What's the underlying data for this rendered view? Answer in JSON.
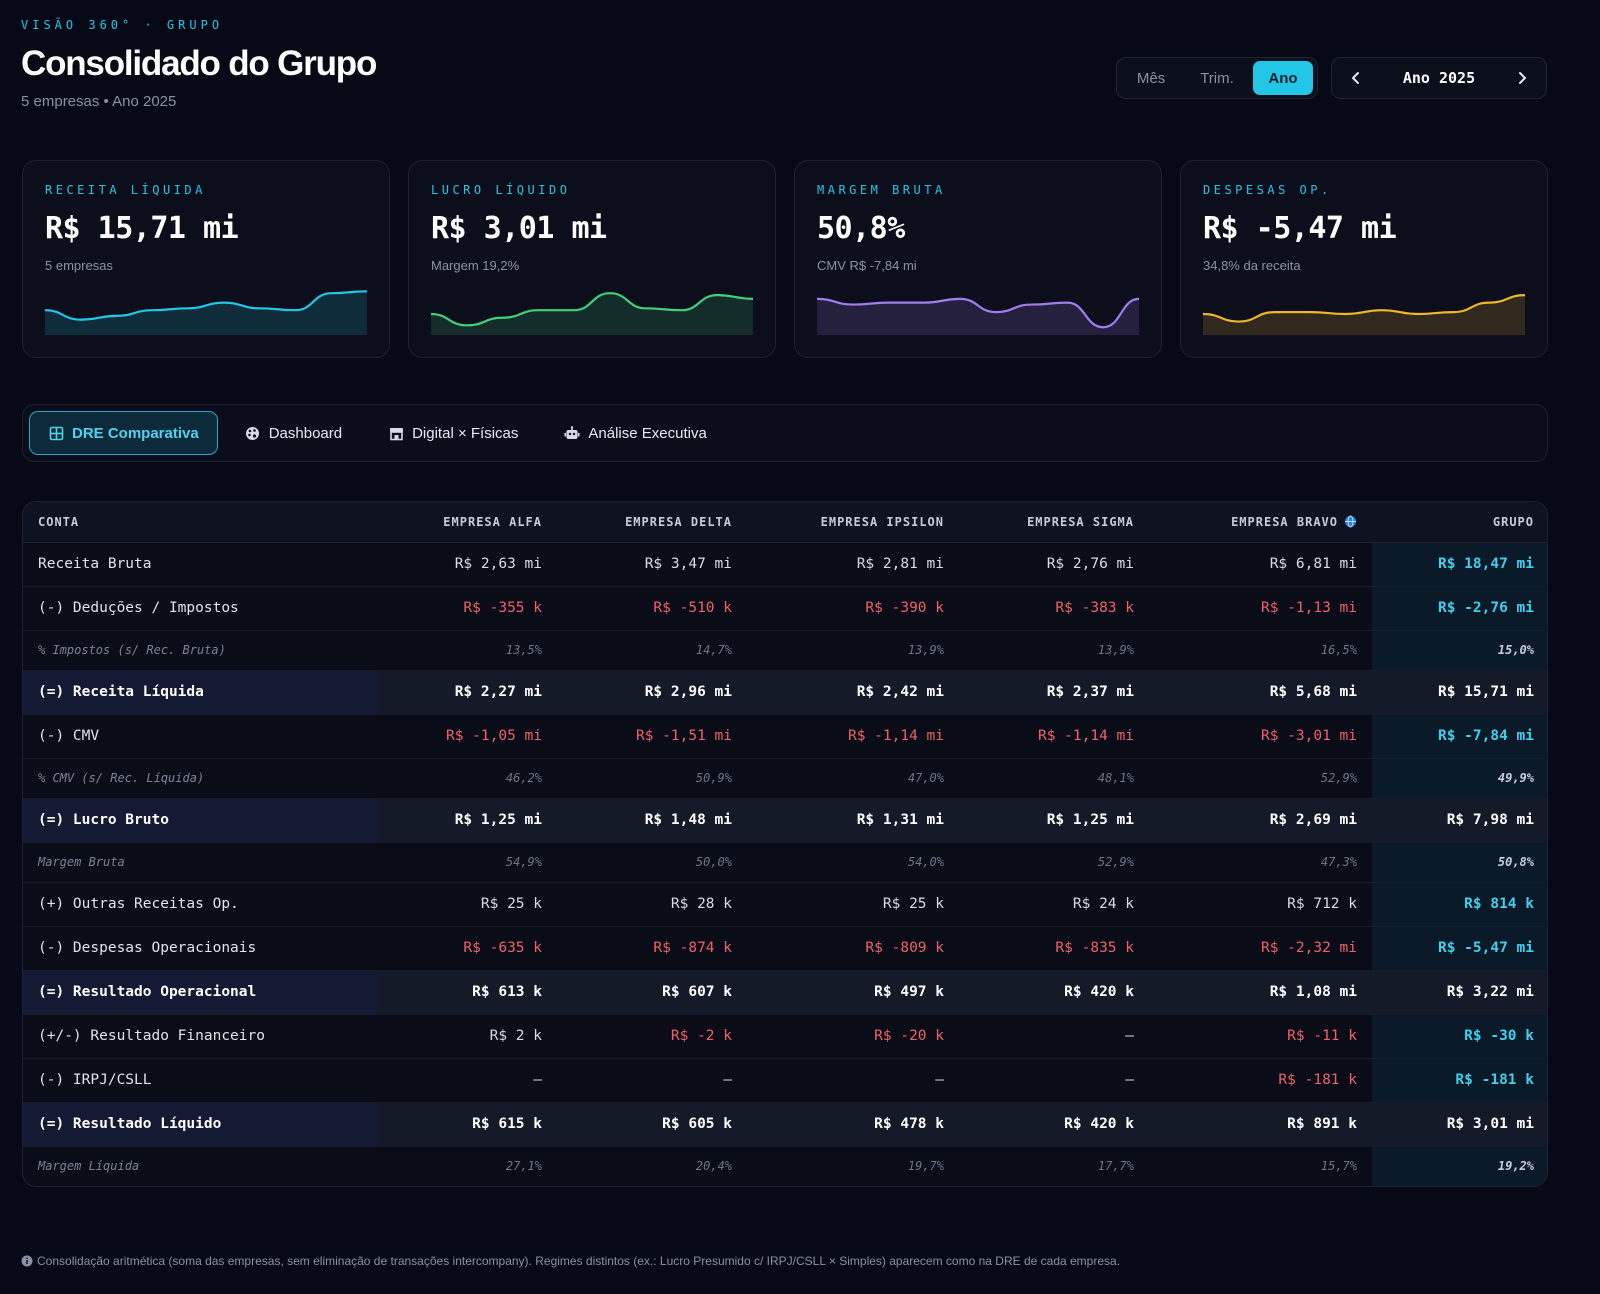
{
  "header": {
    "eyebrow": "VISÃO 360° · GRUPO",
    "title": "Consolidado do Grupo",
    "subtitle": "5 empresas • Ano 2025"
  },
  "period_toggle": {
    "options": [
      "Mês",
      "Trim.",
      "Ano"
    ],
    "selected": "Ano"
  },
  "year_nav": {
    "label": "Ano 2025"
  },
  "kpis": [
    {
      "label": "RECEITA LÍQUIDA",
      "value": "R$ 15,71 mi",
      "sub": "5 empresas",
      "color": "#22c6e6",
      "trend": [
        0.55,
        0.3,
        0.4,
        0.55,
        0.6,
        0.75,
        0.6,
        0.55,
        1.0,
        1.05
      ]
    },
    {
      "label": "LUCRO LÍQUIDO",
      "value": "R$ 3,01 mi",
      "sub": "Margem 19,2%",
      "color": "#3fd07a",
      "trend": [
        0.45,
        0.15,
        0.35,
        0.55,
        0.55,
        1.0,
        0.6,
        0.55,
        0.95,
        0.85
      ]
    },
    {
      "label": "MARGEM BRUTA",
      "value": "50,8%",
      "sub": "CMV R$ -7,84 mi",
      "color": "#a07cf0",
      "trend": [
        0.85,
        0.7,
        0.75,
        0.75,
        0.85,
        0.5,
        0.7,
        0.75,
        0.1,
        0.85
      ]
    },
    {
      "label": "DESPESAS OP.",
      "value": "R$ -5,47 mi",
      "sub": "34,8% da receita",
      "color": "#f0b429",
      "trend": [
        0.45,
        0.25,
        0.5,
        0.5,
        0.45,
        0.55,
        0.45,
        0.5,
        0.75,
        0.95
      ]
    }
  ],
  "tabs": [
    {
      "label": "DRE Comparativa",
      "icon": "table-icon",
      "active": true
    },
    {
      "label": "Dashboard",
      "icon": "palette-icon",
      "active": false
    },
    {
      "label": "Digital × Físicas",
      "icon": "store-icon",
      "active": false
    },
    {
      "label": "Análise Executiva",
      "icon": "robot-icon",
      "active": false
    }
  ],
  "table": {
    "headers": [
      "CONTA",
      "EMPRESA ALFA",
      "EMPRESA DELTA",
      "EMPRESA IPSILON",
      "EMPRESA SIGMA",
      "EMPRESA BRAVO",
      "GRUPO"
    ],
    "bravo_icon": "globe-icon",
    "rows": [
      {
        "type": "normal",
        "cells": [
          "Receita Bruta",
          "R$ 2,63 mi",
          "R$ 3,47 mi",
          "R$ 2,81 mi",
          "R$ 2,76 mi",
          "R$ 6,81 mi",
          "R$ 18,47 mi"
        ]
      },
      {
        "type": "normal",
        "neg": true,
        "cells": [
          "(-) Deduções / Impostos",
          "R$ -355 k",
          "R$ -510 k",
          "R$ -390 k",
          "R$ -383 k",
          "R$ -1,13 mi",
          "R$ -2,76 mi"
        ]
      },
      {
        "type": "pct",
        "cells": [
          "% Impostos (s/ Rec. Bruta)",
          "13,5%",
          "14,7%",
          "13,9%",
          "13,9%",
          "16,5%",
          "15,0%"
        ]
      },
      {
        "type": "total",
        "cells": [
          "(=) Receita Líquida",
          "R$ 2,27 mi",
          "R$ 2,96 mi",
          "R$ 2,42 mi",
          "R$ 2,37 mi",
          "R$ 5,68 mi",
          "R$ 15,71 mi"
        ]
      },
      {
        "type": "normal",
        "neg": true,
        "cells": [
          "(-) CMV",
          "R$ -1,05 mi",
          "R$ -1,51 mi",
          "R$ -1,14 mi",
          "R$ -1,14 mi",
          "R$ -3,01 mi",
          "R$ -7,84 mi"
        ]
      },
      {
        "type": "pct",
        "cells": [
          "% CMV (s/ Rec. Líquida)",
          "46,2%",
          "50,9%",
          "47,0%",
          "48,1%",
          "52,9%",
          "49,9%"
        ]
      },
      {
        "type": "total",
        "cells": [
          "(=) Lucro Bruto",
          "R$ 1,25 mi",
          "R$ 1,48 mi",
          "R$ 1,31 mi",
          "R$ 1,25 mi",
          "R$ 2,69 mi",
          "R$ 7,98 mi"
        ]
      },
      {
        "type": "pct",
        "cells": [
          "Margem Bruta",
          "54,9%",
          "50,0%",
          "54,0%",
          "52,9%",
          "47,3%",
          "50,8%"
        ]
      },
      {
        "type": "normal",
        "cells": [
          "(+) Outras Receitas Op.",
          "R$ 25 k",
          "R$ 28 k",
          "R$ 25 k",
          "R$ 24 k",
          "R$ 712 k",
          "R$ 814 k"
        ]
      },
      {
        "type": "normal",
        "neg": true,
        "cells": [
          "(-) Despesas Operacionais",
          "R$ -635 k",
          "R$ -874 k",
          "R$ -809 k",
          "R$ -835 k",
          "R$ -2,32 mi",
          "R$ -5,47 mi"
        ]
      },
      {
        "type": "total",
        "cells": [
          "(=) Resultado Operacional",
          "R$ 613 k",
          "R$ 607 k",
          "R$ 497 k",
          "R$ 420 k",
          "R$ 1,08 mi",
          "R$ 3,22 mi"
        ]
      },
      {
        "type": "normal",
        "negcols": [
          2,
          3,
          5
        ],
        "cells": [
          "(+/-) Resultado Financeiro",
          "R$ 2 k",
          "R$ -2 k",
          "R$ -20 k",
          "—",
          "R$ -11 k",
          "R$ -30 k"
        ]
      },
      {
        "type": "normal",
        "negcols": [
          5
        ],
        "cells": [
          "(-) IRPJ/CSLL",
          "—",
          "—",
          "—",
          "—",
          "R$ -181 k",
          "R$ -181 k"
        ]
      },
      {
        "type": "total",
        "cells": [
          "(=) Resultado Líquido",
          "R$ 615 k",
          "R$ 605 k",
          "R$ 478 k",
          "R$ 420 k",
          "R$ 891 k",
          "R$ 3,01 mi"
        ]
      },
      {
        "type": "pct",
        "cells": [
          "Margem Líquida",
          "27,1%",
          "20,4%",
          "19,7%",
          "17,7%",
          "15,7%",
          "19,2%"
        ]
      }
    ]
  },
  "footnote": {
    "icon": "info-icon",
    "text": "Consolidação aritmética (soma das empresas, sem eliminação de transações intercompany). Regimes distintos (ex.: Lucro Presumido c/ IRPJ/CSLL × Simples) aparecem como na DRE de cada empresa."
  }
}
